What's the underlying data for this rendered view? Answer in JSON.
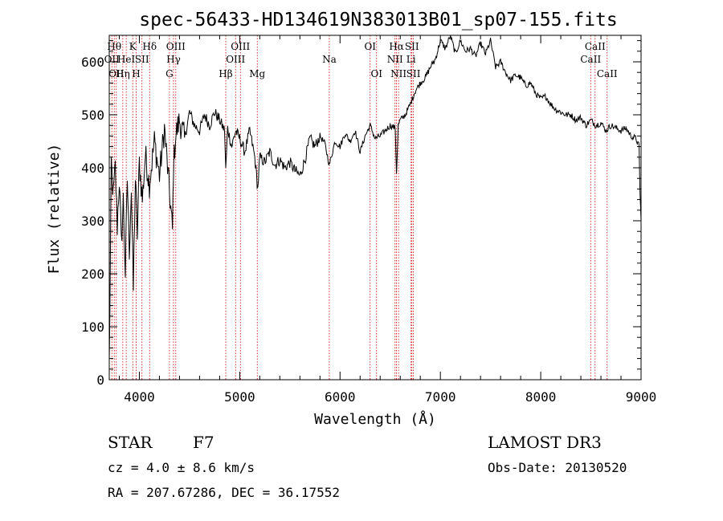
{
  "chart_data": {
    "type": "line",
    "title": "spec-56433-HD134619N383013B01_sp07-155.fits",
    "xlabel": "Wavelength (Å)",
    "ylabel": "Flux (relative)",
    "xlim": [
      3700,
      9000
    ],
    "ylim": [
      0,
      650
    ],
    "xticks": [
      4000,
      5000,
      6000,
      7000,
      8000,
      9000
    ],
    "yticks": [
      0,
      100,
      200,
      300,
      400,
      500,
      600
    ],
    "series": [
      {
        "name": "Flux",
        "x": [
          3700,
          3710,
          3720,
          3740,
          3760,
          3780,
          3800,
          3820,
          3840,
          3860,
          3880,
          3900,
          3920,
          3940,
          3960,
          3980,
          4000,
          4030,
          4060,
          4100,
          4150,
          4200,
          4250,
          4300,
          4330,
          4340,
          4360,
          4400,
          4450,
          4500,
          4550,
          4600,
          4650,
          4700,
          4750,
          4800,
          4850,
          4861,
          4880,
          4920,
          4960,
          5000,
          5050,
          5100,
          5150,
          5180,
          5200,
          5250,
          5300,
          5350,
          5400,
          5450,
          5500,
          5550,
          5600,
          5650,
          5700,
          5750,
          5800,
          5850,
          5893,
          5950,
          6000,
          6050,
          6100,
          6150,
          6200,
          6250,
          6300,
          6350,
          6400,
          6450,
          6500,
          6550,
          6563,
          6580,
          6600,
          6650,
          6700,
          6750,
          6800,
          6850,
          6900,
          6950,
          7000,
          7050,
          7100,
          7150,
          7200,
          7250,
          7300,
          7350,
          7400,
          7450,
          7500,
          7550,
          7600,
          7650,
          7700,
          7750,
          7800,
          7850,
          7900,
          7950,
          8000,
          8050,
          8100,
          8150,
          8200,
          8250,
          8300,
          8350,
          8400,
          8450,
          8500,
          8550,
          8600,
          8650,
          8700,
          8750,
          8800,
          8850,
          8900,
          8950,
          8980,
          8990,
          9000
        ],
        "y": [
          30,
          190,
          410,
          345,
          400,
          290,
          380,
          255,
          340,
          200,
          380,
          245,
          360,
          170,
          380,
          275,
          410,
          340,
          425,
          370,
          450,
          385,
          475,
          355,
          280,
          400,
          460,
          490,
          455,
          505,
          480,
          470,
          500,
          480,
          505,
          490,
          470,
          395,
          475,
          440,
          470,
          455,
          430,
          470,
          420,
          360,
          420,
          410,
          430,
          405,
          415,
          400,
          410,
          395,
          385,
          415,
          455,
          440,
          460,
          445,
          405,
          450,
          440,
          465,
          450,
          470,
          430,
          460,
          480,
          455,
          460,
          470,
          480,
          475,
          390,
          480,
          490,
          500,
          520,
          545,
          560,
          570,
          590,
          605,
          640,
          625,
          650,
          615,
          640,
          620,
          625,
          610,
          635,
          615,
          640,
          590,
          600,
          580,
          565,
          575,
          570,
          555,
          560,
          540,
          530,
          535,
          520,
          510,
          505,
          500,
          500,
          490,
          495,
          480,
          490,
          480,
          485,
          470,
          480,
          475,
          470,
          475,
          460,
          455,
          440,
          350,
          300
        ]
      }
    ],
    "lines": [
      {
        "x": 3726,
        "label": "OII",
        "row": 2
      },
      {
        "x": 3750,
        "label": "Hθ",
        "row": 1
      },
      {
        "x": 3770,
        "label": "OII",
        "row": 3
      },
      {
        "x": 3835,
        "label": "Hη",
        "row": 3
      },
      {
        "x": 3869,
        "label": "HeI",
        "row": 2
      },
      {
        "x": 3934,
        "label": "K",
        "row": 1
      },
      {
        "x": 3968,
        "label": "H",
        "row": 3
      },
      {
        "x": 4026,
        "label": "SII",
        "row": 2
      },
      {
        "x": 4102,
        "label": "Hδ",
        "row": 1
      },
      {
        "x": 4300,
        "label": "G",
        "row": 3
      },
      {
        "x": 4340,
        "label": "Hγ",
        "row": 2
      },
      {
        "x": 4363,
        "label": "OIII",
        "row": 1
      },
      {
        "x": 4861,
        "label": "Hβ",
        "row": 3
      },
      {
        "x": 4959,
        "label": "OIII",
        "row": 2
      },
      {
        "x": 5007,
        "label": "OIII",
        "row": 1
      },
      {
        "x": 5175,
        "label": "Mg",
        "row": 3
      },
      {
        "x": 5893,
        "label": "Na",
        "row": 2
      },
      {
        "x": 6300,
        "label": "OI",
        "row": 1
      },
      {
        "x": 6364,
        "label": "OI",
        "row": 3
      },
      {
        "x": 6548,
        "label": "NII",
        "row": 2
      },
      {
        "x": 6563,
        "label": "Hα",
        "row": 1
      },
      {
        "x": 6583,
        "label": "NII",
        "row": 3
      },
      {
        "x": 6708,
        "label": "Li",
        "row": 2
      },
      {
        "x": 6716,
        "label": "SII",
        "row": 1
      },
      {
        "x": 6731,
        "label": "SII",
        "row": 3
      },
      {
        "x": 8498,
        "label": "CaII",
        "row": 2
      },
      {
        "x": 8542,
        "label": "CaII",
        "row": 1
      },
      {
        "x": 8662,
        "label": "CaII",
        "row": 3
      }
    ],
    "colors": {
      "spectrum": "#000000",
      "lines": "#cc0000",
      "axes": "#000000"
    }
  },
  "info": {
    "class_label": "STAR",
    "subclass": "F7",
    "cz": "cz = 4.0 ± 8.6 km/s",
    "radec": "RA = 207.67286, DEC =  36.17552",
    "survey": "LAMOST DR3",
    "obs_date": "Obs-Date: 20130520"
  }
}
